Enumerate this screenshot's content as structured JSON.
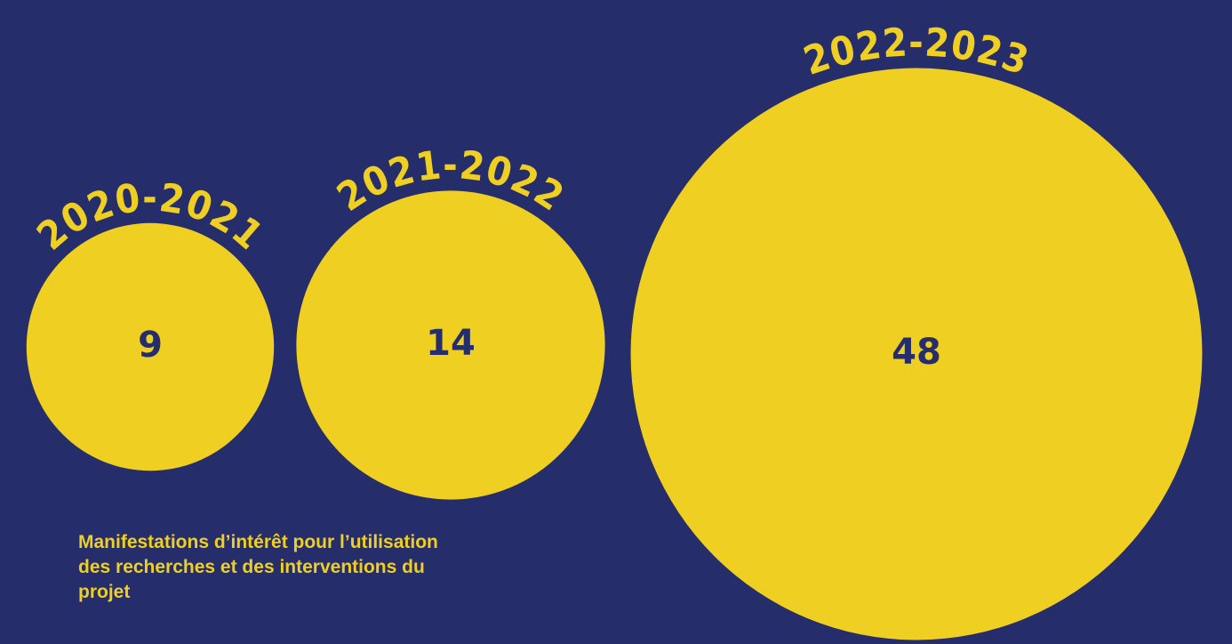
{
  "chart_data": {
    "type": "bubble",
    "title": "Manifestations d’intérêt pour l’utilisation des recherches et des interventions du projet",
    "categories": [
      "2020-2021",
      "2021-2022",
      "2022-2023"
    ],
    "values": [
      9,
      14,
      48
    ],
    "color": "#efcf21",
    "label_color": "#262d6b",
    "background": "#262d6b"
  }
}
